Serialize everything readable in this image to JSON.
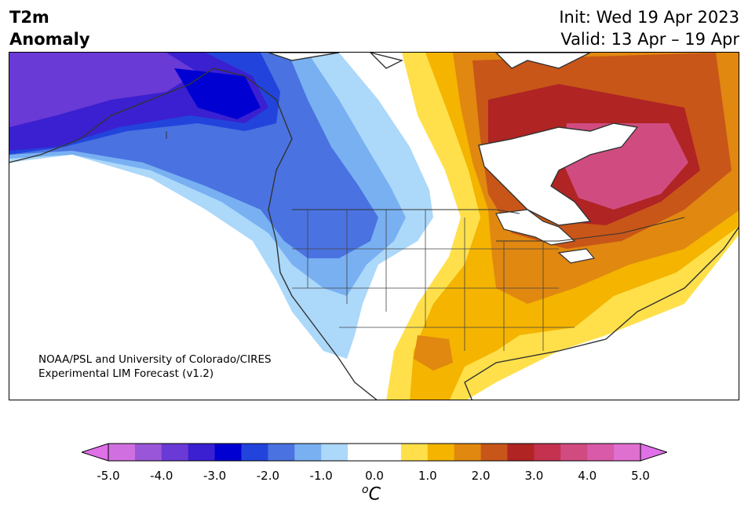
{
  "title": {
    "line1": "T2m",
    "line2": "Anomaly"
  },
  "dates": {
    "init": "Init: Wed 19 Apr 2023",
    "valid": "Valid: 13 Apr – 19 Apr"
  },
  "credit": {
    "line1": "NOAA/PSL and University of Colorado/CIRES",
    "line2": "Experimental LIM Forecast (v1.2)"
  },
  "colorbar": {
    "ticks": [
      "-5.0",
      "-4.0",
      "-3.0",
      "-2.0",
      "-1.0",
      "0.0",
      "1.0",
      "2.0",
      "3.0",
      "4.0",
      "5.0"
    ],
    "unit_sup": "o",
    "unit_main": "C",
    "min": -5.0,
    "max": 5.0,
    "step": 0.5,
    "under_color": "#e070e8",
    "over_color": "#e070e8",
    "colors": [
      "#d070e0",
      "#9a56d8",
      "#6a3ad6",
      "#3a20d0",
      "#0000d2",
      "#2244dc",
      "#4a72e0",
      "#78b0f2",
      "#acd8fa",
      "#ffffff",
      "#ffffff",
      "#ffe04a",
      "#f4b400",
      "#e08810",
      "#c85618",
      "#b02424",
      "#c43250",
      "#d04c80",
      "#d85aa8",
      "#e070d0"
    ]
  },
  "legend_colors": {
    "strong_cold": "#3a20d0",
    "cold": "#4a72e0",
    "cool": "#acd8fa",
    "warm": "#f4b400",
    "hot": "#b02424",
    "very_hot": "#d04c80"
  }
}
